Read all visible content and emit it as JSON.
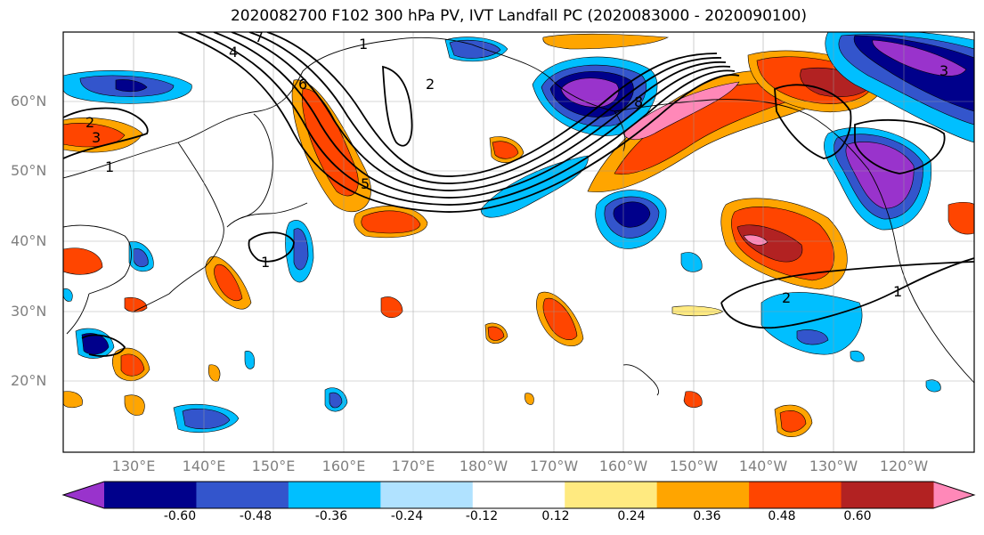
{
  "title": "2020082700 F102 300 hPa PV, IVT Landfall PC (2020083000 - 2020090100)",
  "lat_labels": [
    "60°N",
    "50°N",
    "40°N",
    "30°N",
    "20°N"
  ],
  "lon_labels": [
    "130°E",
    "140°E",
    "150°E",
    "160°E",
    "170°E",
    "180°W",
    "170°W",
    "160°W",
    "150°W",
    "140°W",
    "130°W",
    "120°W"
  ],
  "colorbar": {
    "ticks": [
      "-0.60",
      "-0.48",
      "-0.36",
      "-0.24",
      "-0.12",
      "0.12",
      "0.24",
      "0.36",
      "0.48",
      "0.60"
    ],
    "colors": [
      "#9933cc",
      "#00008b",
      "#3355cc",
      "#00bfff",
      "#b0e2ff",
      "#ffffff",
      "#ffea80",
      "#ffa500",
      "#ff4500",
      "#b22222",
      "#ff88b8"
    ]
  },
  "contour_labels": [
    "1",
    "2",
    "3",
    "4",
    "5",
    "6",
    "7",
    "8"
  ]
}
